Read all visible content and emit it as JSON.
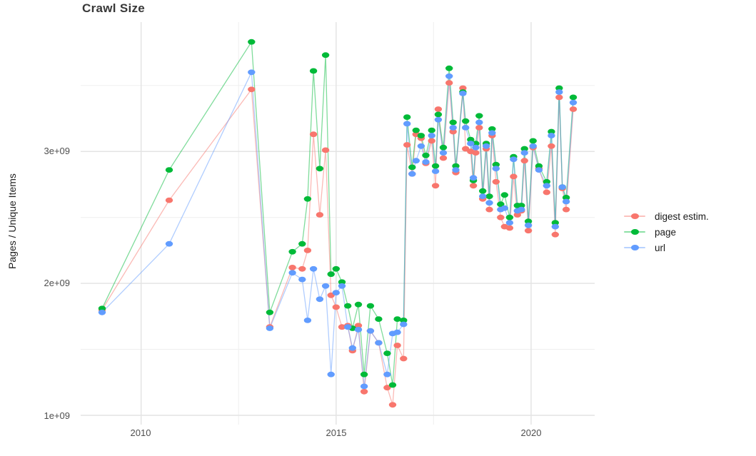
{
  "title": "Crawl Size",
  "y_axis": {
    "label": "Pages / Unique Items",
    "ticks": [
      "1e+09",
      "2e+09",
      "3e+09"
    ]
  },
  "x_axis": {
    "ticks": [
      "2010",
      "2015",
      "2020"
    ]
  },
  "legend": {
    "items": [
      {
        "label": "digest estim.",
        "color": "#F8766D"
      },
      {
        "label": "page",
        "color": "#00BA38"
      },
      {
        "label": "url",
        "color": "#619CFF"
      }
    ]
  },
  "colors": {
    "background": "#FFFFFF",
    "grid_major": "#E4E4E4",
    "grid_minor": "#F0F0F0",
    "tick_text": "#4E4E4E",
    "title_text": "#383838",
    "digest": "#F8766D",
    "page": "#00BA38",
    "url": "#619CFF"
  },
  "chart_data": {
    "type": "line",
    "title": "Crawl Size",
    "xlabel": "",
    "ylabel": "Pages / Unique Items",
    "legend_position": "right",
    "grid": true,
    "marker": "point",
    "line_alpha": 0.5,
    "values_unit_multiplier": 1000000000.0,
    "xlim": [
      2008.45,
      2021.63
    ],
    "ylim_billions": [
      0.93,
      3.98
    ],
    "y_major_ticks_billions": [
      1,
      2,
      3
    ],
    "y_minor_gridlines_billions": [
      1.5,
      2.5,
      3.5
    ],
    "x_major_ticks": [
      2010,
      2015,
      2020
    ],
    "x_minor_gridlines": [
      2012.5,
      2017.5
    ],
    "x": [
      2009.0,
      2010.72,
      2012.83,
      2013.3,
      2013.88,
      2014.13,
      2014.27,
      2014.42,
      2014.58,
      2014.73,
      2014.87,
      2015.0,
      2015.15,
      2015.3,
      2015.42,
      2015.57,
      2015.72,
      2015.88,
      2016.09,
      2016.31,
      2016.45,
      2016.57,
      2016.73,
      2016.82,
      2016.95,
      2017.05,
      2017.18,
      2017.3,
      2017.45,
      2017.55,
      2017.62,
      2017.75,
      2017.9,
      2018.0,
      2018.07,
      2018.25,
      2018.32,
      2018.45,
      2018.52,
      2018.58,
      2018.67,
      2018.76,
      2018.85,
      2018.93,
      2019.0,
      2019.1,
      2019.22,
      2019.32,
      2019.45,
      2019.55,
      2019.65,
      2019.75,
      2019.83,
      2019.93,
      2020.05,
      2020.2,
      2020.4,
      2020.52,
      2020.62,
      2020.72,
      2020.8,
      2020.9,
      2021.08
    ],
    "series": [
      {
        "name": "digest estim.",
        "color": "#F8766D",
        "values_billions": [
          1.8,
          2.63,
          3.47,
          1.67,
          2.12,
          2.11,
          2.25,
          3.13,
          2.52,
          3.01,
          1.91,
          1.82,
          1.67,
          1.68,
          1.49,
          1.68,
          1.18,
          1.64,
          1.55,
          1.21,
          1.08,
          1.53,
          1.43,
          3.05,
          2.83,
          3.13,
          3.1,
          2.91,
          3.08,
          2.74,
          3.32,
          2.95,
          3.52,
          3.15,
          2.84,
          3.48,
          3.02,
          3.0,
          2.74,
          2.99,
          3.18,
          2.64,
          3.02,
          2.56,
          3.12,
          2.77,
          2.5,
          2.43,
          2.42,
          2.81,
          2.52,
          2.55,
          2.93,
          2.4,
          3.03,
          2.87,
          2.69,
          3.04,
          2.37,
          3.41,
          2.72,
          2.56,
          3.32
        ]
      },
      {
        "name": "page",
        "color": "#00BA38",
        "values_billions": [
          1.81,
          2.86,
          3.83,
          1.78,
          2.24,
          2.3,
          2.64,
          3.61,
          2.87,
          3.73,
          2.07,
          2.11,
          2.01,
          1.83,
          1.66,
          1.84,
          1.31,
          1.83,
          1.73,
          1.47,
          1.23,
          1.73,
          1.72,
          3.26,
          2.88,
          3.16,
          3.12,
          2.97,
          3.16,
          2.89,
          3.28,
          3.03,
          3.63,
          3.22,
          2.89,
          3.45,
          3.23,
          3.09,
          2.78,
          3.06,
          3.27,
          2.7,
          3.06,
          2.66,
          3.17,
          2.9,
          2.6,
          2.67,
          2.5,
          2.96,
          2.59,
          2.59,
          3.02,
          2.47,
          3.08,
          2.89,
          2.77,
          3.15,
          2.46,
          3.48,
          2.73,
          2.65,
          3.41
        ]
      },
      {
        "name": "url",
        "color": "#619CFF",
        "values_billions": [
          1.78,
          2.3,
          3.6,
          1.66,
          2.08,
          2.03,
          1.72,
          2.11,
          1.88,
          1.98,
          1.31,
          1.93,
          1.98,
          1.67,
          1.51,
          1.65,
          1.22,
          1.64,
          1.55,
          1.31,
          1.62,
          1.63,
          1.69,
          3.21,
          2.83,
          2.93,
          3.04,
          2.92,
          3.12,
          2.85,
          3.24,
          2.99,
          3.57,
          3.18,
          2.86,
          3.44,
          3.18,
          3.06,
          2.8,
          3.03,
          3.22,
          2.66,
          3.04,
          2.61,
          3.14,
          2.87,
          2.56,
          2.57,
          2.46,
          2.94,
          2.55,
          2.56,
          2.99,
          2.44,
          3.04,
          2.86,
          2.74,
          3.12,
          2.43,
          3.45,
          2.73,
          2.62,
          3.37
        ]
      }
    ]
  }
}
